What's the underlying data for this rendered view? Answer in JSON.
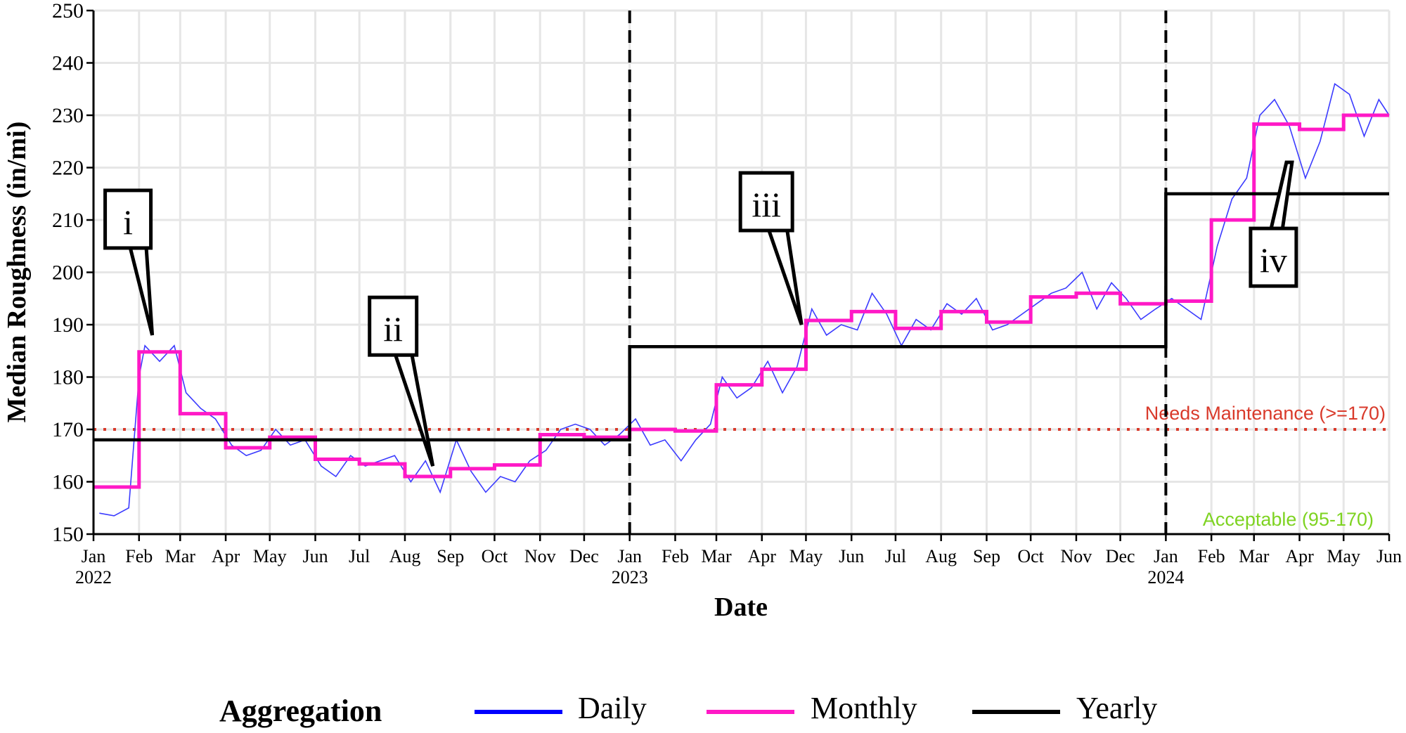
{
  "chart_data": {
    "type": "line",
    "title": "",
    "xlabel": "Date",
    "ylabel": "Median Roughness (in/mi)",
    "xlim": [
      "2022-01-01",
      "2024-06-01"
    ],
    "ylim": [
      150,
      250
    ],
    "yticks": [
      150,
      160,
      170,
      180,
      190,
      200,
      210,
      220,
      230,
      240,
      250
    ],
    "xticks": [
      {
        "date": "2022-01-01",
        "label": "Jan",
        "year": "2022"
      },
      {
        "date": "2022-02-01",
        "label": "Feb"
      },
      {
        "date": "2022-03-01",
        "label": "Mar"
      },
      {
        "date": "2022-04-01",
        "label": "Apr"
      },
      {
        "date": "2022-05-01",
        "label": "May"
      },
      {
        "date": "2022-06-01",
        "label": "Jun"
      },
      {
        "date": "2022-07-01",
        "label": "Jul"
      },
      {
        "date": "2022-08-01",
        "label": "Aug"
      },
      {
        "date": "2022-09-01",
        "label": "Sep"
      },
      {
        "date": "2022-10-01",
        "label": "Oct"
      },
      {
        "date": "2022-11-01",
        "label": "Nov"
      },
      {
        "date": "2022-12-01",
        "label": "Dec"
      },
      {
        "date": "2023-01-01",
        "label": "Jan",
        "year": "2023"
      },
      {
        "date": "2023-02-01",
        "label": "Feb"
      },
      {
        "date": "2023-03-01",
        "label": "Mar"
      },
      {
        "date": "2023-04-01",
        "label": "Apr"
      },
      {
        "date": "2023-05-01",
        "label": "May"
      },
      {
        "date": "2023-06-01",
        "label": "Jun"
      },
      {
        "date": "2023-07-01",
        "label": "Jul"
      },
      {
        "date": "2023-08-01",
        "label": "Aug"
      },
      {
        "date": "2023-09-01",
        "label": "Sep"
      },
      {
        "date": "2023-10-01",
        "label": "Oct"
      },
      {
        "date": "2023-11-01",
        "label": "Nov"
      },
      {
        "date": "2023-12-01",
        "label": "Dec"
      },
      {
        "date": "2024-01-01",
        "label": "Jan",
        "year": "2024"
      },
      {
        "date": "2024-02-01",
        "label": "Feb"
      },
      {
        "date": "2024-03-01",
        "label": "Mar"
      },
      {
        "date": "2024-04-01",
        "label": "Apr"
      },
      {
        "date": "2024-05-01",
        "label": "May"
      },
      {
        "date": "2024-06-01",
        "label": "Jun"
      }
    ],
    "grid": true,
    "year_boundaries": [
      "2023-01-01",
      "2024-01-01"
    ],
    "thresholds": [
      {
        "value": 170,
        "label": "Needs Maintenance (>=170)",
        "color": "#d93a2b",
        "style": "dotted"
      },
      {
        "label": "Acceptable (95-170)",
        "color": "#7ed321"
      }
    ],
    "legend": {
      "title": "Aggregation",
      "placement": "bottom"
    },
    "series": [
      {
        "name": "Daily",
        "color": "#3b3bff",
        "points": [
          [
            "2022-01-05",
            154
          ],
          [
            "2022-01-15",
            153.5
          ],
          [
            "2022-01-25",
            155
          ],
          [
            "2022-02-01",
            180
          ],
          [
            "2022-02-05",
            186
          ],
          [
            "2022-02-15",
            183
          ],
          [
            "2022-02-25",
            186
          ],
          [
            "2022-03-05",
            177
          ],
          [
            "2022-03-15",
            174
          ],
          [
            "2022-03-25",
            172
          ],
          [
            "2022-04-05",
            167
          ],
          [
            "2022-04-15",
            165
          ],
          [
            "2022-04-25",
            166
          ],
          [
            "2022-05-05",
            170
          ],
          [
            "2022-05-15",
            167
          ],
          [
            "2022-05-25",
            168
          ],
          [
            "2022-06-05",
            163
          ],
          [
            "2022-06-15",
            161
          ],
          [
            "2022-06-25",
            165
          ],
          [
            "2022-07-05",
            163
          ],
          [
            "2022-07-15",
            164
          ],
          [
            "2022-07-25",
            165
          ],
          [
            "2022-08-05",
            160
          ],
          [
            "2022-08-15",
            164
          ],
          [
            "2022-08-25",
            158
          ],
          [
            "2022-09-05",
            168
          ],
          [
            "2022-09-15",
            162
          ],
          [
            "2022-09-25",
            158
          ],
          [
            "2022-10-05",
            161
          ],
          [
            "2022-10-15",
            160
          ],
          [
            "2022-10-25",
            164
          ],
          [
            "2022-11-05",
            166
          ],
          [
            "2022-11-15",
            170
          ],
          [
            "2022-11-25",
            171
          ],
          [
            "2022-12-05",
            170
          ],
          [
            "2022-12-15",
            167
          ],
          [
            "2022-12-25",
            169
          ],
          [
            "2023-01-05",
            172
          ],
          [
            "2023-01-15",
            167
          ],
          [
            "2023-01-25",
            168
          ],
          [
            "2023-02-05",
            164
          ],
          [
            "2023-02-15",
            168
          ],
          [
            "2023-02-25",
            171
          ],
          [
            "2023-03-05",
            180
          ],
          [
            "2023-03-15",
            176
          ],
          [
            "2023-03-25",
            178
          ],
          [
            "2023-04-05",
            183
          ],
          [
            "2023-04-15",
            177
          ],
          [
            "2023-04-25",
            182
          ],
          [
            "2023-05-05",
            193
          ],
          [
            "2023-05-15",
            188
          ],
          [
            "2023-05-25",
            190
          ],
          [
            "2023-06-05",
            189
          ],
          [
            "2023-06-15",
            196
          ],
          [
            "2023-06-25",
            192
          ],
          [
            "2023-07-05",
            186
          ],
          [
            "2023-07-15",
            191
          ],
          [
            "2023-07-25",
            189
          ],
          [
            "2023-08-05",
            194
          ],
          [
            "2023-08-15",
            192
          ],
          [
            "2023-08-25",
            195
          ],
          [
            "2023-09-05",
            189
          ],
          [
            "2023-09-15",
            190
          ],
          [
            "2023-09-25",
            192
          ],
          [
            "2023-10-05",
            194
          ],
          [
            "2023-10-15",
            196
          ],
          [
            "2023-10-25",
            197
          ],
          [
            "2023-11-05",
            200
          ],
          [
            "2023-11-15",
            193
          ],
          [
            "2023-11-25",
            198
          ],
          [
            "2023-12-05",
            195
          ],
          [
            "2023-12-15",
            191
          ],
          [
            "2023-12-25",
            193
          ],
          [
            "2024-01-05",
            195
          ],
          [
            "2024-01-15",
            193
          ],
          [
            "2024-01-25",
            191
          ],
          [
            "2024-02-05",
            205
          ],
          [
            "2024-02-15",
            214
          ],
          [
            "2024-02-25",
            218
          ],
          [
            "2024-03-05",
            230
          ],
          [
            "2024-03-15",
            233
          ],
          [
            "2024-03-25",
            228
          ],
          [
            "2024-04-05",
            218
          ],
          [
            "2024-04-15",
            225
          ],
          [
            "2024-04-25",
            236
          ],
          [
            "2024-05-05",
            234
          ],
          [
            "2024-05-15",
            226
          ],
          [
            "2024-05-25",
            233
          ],
          [
            "2024-06-01",
            230
          ]
        ]
      },
      {
        "name": "Monthly",
        "color": "#ff19c6",
        "steps": [
          [
            "2022-01-01",
            159
          ],
          [
            "2022-02-01",
            184.8
          ],
          [
            "2022-03-01",
            173
          ],
          [
            "2022-04-01",
            166.5
          ],
          [
            "2022-05-01",
            168.5
          ],
          [
            "2022-06-01",
            164.3
          ],
          [
            "2022-07-01",
            163.4
          ],
          [
            "2022-08-01",
            161
          ],
          [
            "2022-09-01",
            162.5
          ],
          [
            "2022-10-01",
            163.2
          ],
          [
            "2022-11-01",
            169
          ],
          [
            "2022-12-01",
            168.5
          ],
          [
            "2023-01-01",
            170
          ],
          [
            "2023-02-01",
            169.7
          ],
          [
            "2023-03-01",
            178.5
          ],
          [
            "2023-04-01",
            181.5
          ],
          [
            "2023-05-01",
            190.8
          ],
          [
            "2023-06-01",
            192.5
          ],
          [
            "2023-07-01",
            189.3
          ],
          [
            "2023-08-01",
            192.5
          ],
          [
            "2023-09-01",
            190.5
          ],
          [
            "2023-10-01",
            195.3
          ],
          [
            "2023-11-01",
            196
          ],
          [
            "2023-12-01",
            194
          ],
          [
            "2024-01-01",
            194.5
          ],
          [
            "2024-02-01",
            210
          ],
          [
            "2024-03-01",
            228.3
          ],
          [
            "2024-04-01",
            227.3
          ],
          [
            "2024-05-01",
            230
          ]
        ]
      },
      {
        "name": "Yearly",
        "color": "#000000",
        "steps": [
          [
            "2022-01-01",
            168
          ],
          [
            "2023-01-01",
            185.8
          ],
          [
            "2024-01-01",
            215
          ]
        ]
      }
    ],
    "annotations": [
      {
        "label": "i",
        "date": "2022-02-10",
        "value": 188
      },
      {
        "label": "ii",
        "date": "2022-08-20",
        "value": 163
      },
      {
        "label": "iii",
        "date": "2023-04-28",
        "value": 190
      },
      {
        "label": "iv",
        "date": "2024-03-25",
        "value": 221
      }
    ]
  }
}
